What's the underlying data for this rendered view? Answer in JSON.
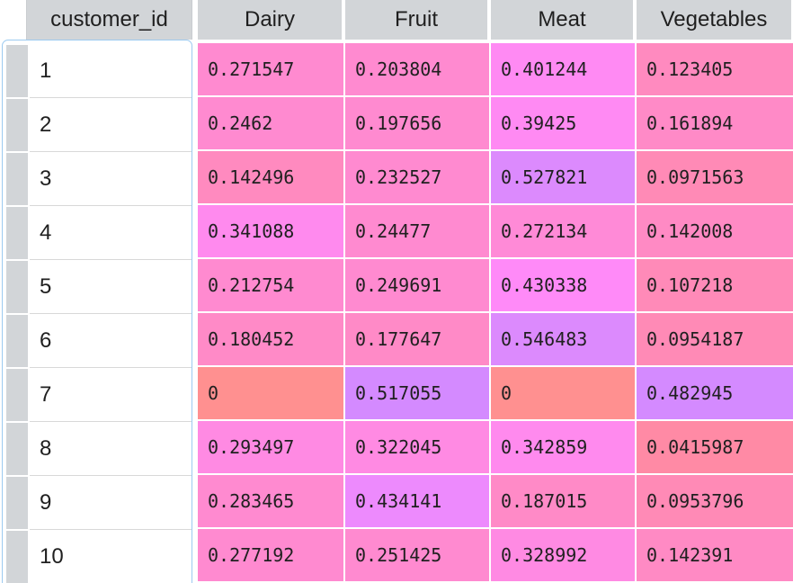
{
  "table": {
    "index_header": "customer_id",
    "columns": [
      "Dairy",
      "Fruit",
      "Meat",
      "Vegetables"
    ],
    "rows": [
      {
        "id": "1",
        "values": [
          "0.271547",
          "0.203804",
          "0.401244",
          "0.123405"
        ],
        "colors": [
          "#ff8ad0",
          "#ff8ad0",
          "#ff8af3",
          "#ff8abf"
        ]
      },
      {
        "id": "2",
        "values": [
          "0.2462",
          "0.197656",
          "0.39425",
          "0.161894"
        ],
        "colors": [
          "#ff8ad0",
          "#ff8ad0",
          "#ff8af3",
          "#ff8ac7"
        ]
      },
      {
        "id": "3",
        "values": [
          "0.142496",
          "0.232527",
          "0.527821",
          "0.0971563"
        ],
        "colors": [
          "#ff8abf",
          "#ff8ad0",
          "#dc8afd",
          "#ff8ab6"
        ]
      },
      {
        "id": "4",
        "values": [
          "0.341088",
          "0.24477",
          "0.272134",
          "0.142008"
        ],
        "colors": [
          "#ff8aee",
          "#ff8ad0",
          "#ff8ad7",
          "#ff8ac4"
        ]
      },
      {
        "id": "5",
        "values": [
          "0.212754",
          "0.249691",
          "0.430338",
          "0.107218"
        ],
        "colors": [
          "#ff8ad0",
          "#ff8ad0",
          "#ff8af8",
          "#ff8ab8"
        ]
      },
      {
        "id": "6",
        "values": [
          "0.180452",
          "0.177647",
          "0.546483",
          "0.0954187"
        ],
        "colors": [
          "#ff8ac7",
          "#ff8ac7",
          "#dc8afd",
          "#ff8ab6"
        ]
      },
      {
        "id": "7",
        "values": [
          "0",
          "0.517055",
          "0",
          "0.482945"
        ],
        "colors": [
          "#ff9090",
          "#d48aff",
          "#ff9090",
          "#d48aff"
        ]
      },
      {
        "id": "8",
        "values": [
          "0.293497",
          "0.322045",
          "0.342859",
          "0.0415987"
        ],
        "colors": [
          "#ff8ae3",
          "#ff8ae3",
          "#ff8aee",
          "#ff8aa5"
        ]
      },
      {
        "id": "9",
        "values": [
          "0.283465",
          "0.434141",
          "0.187015",
          "0.0953796"
        ],
        "colors": [
          "#ff8ad0",
          "#ed8afd",
          "#ff8ac7",
          "#ff8ab6"
        ]
      },
      {
        "id": "10",
        "values": [
          "0.277192",
          "0.251425",
          "0.328992",
          "0.142391"
        ],
        "colors": [
          "#ff8ad0",
          "#ff8ad0",
          "#ff8ae3",
          "#ff8ac4"
        ]
      }
    ]
  }
}
